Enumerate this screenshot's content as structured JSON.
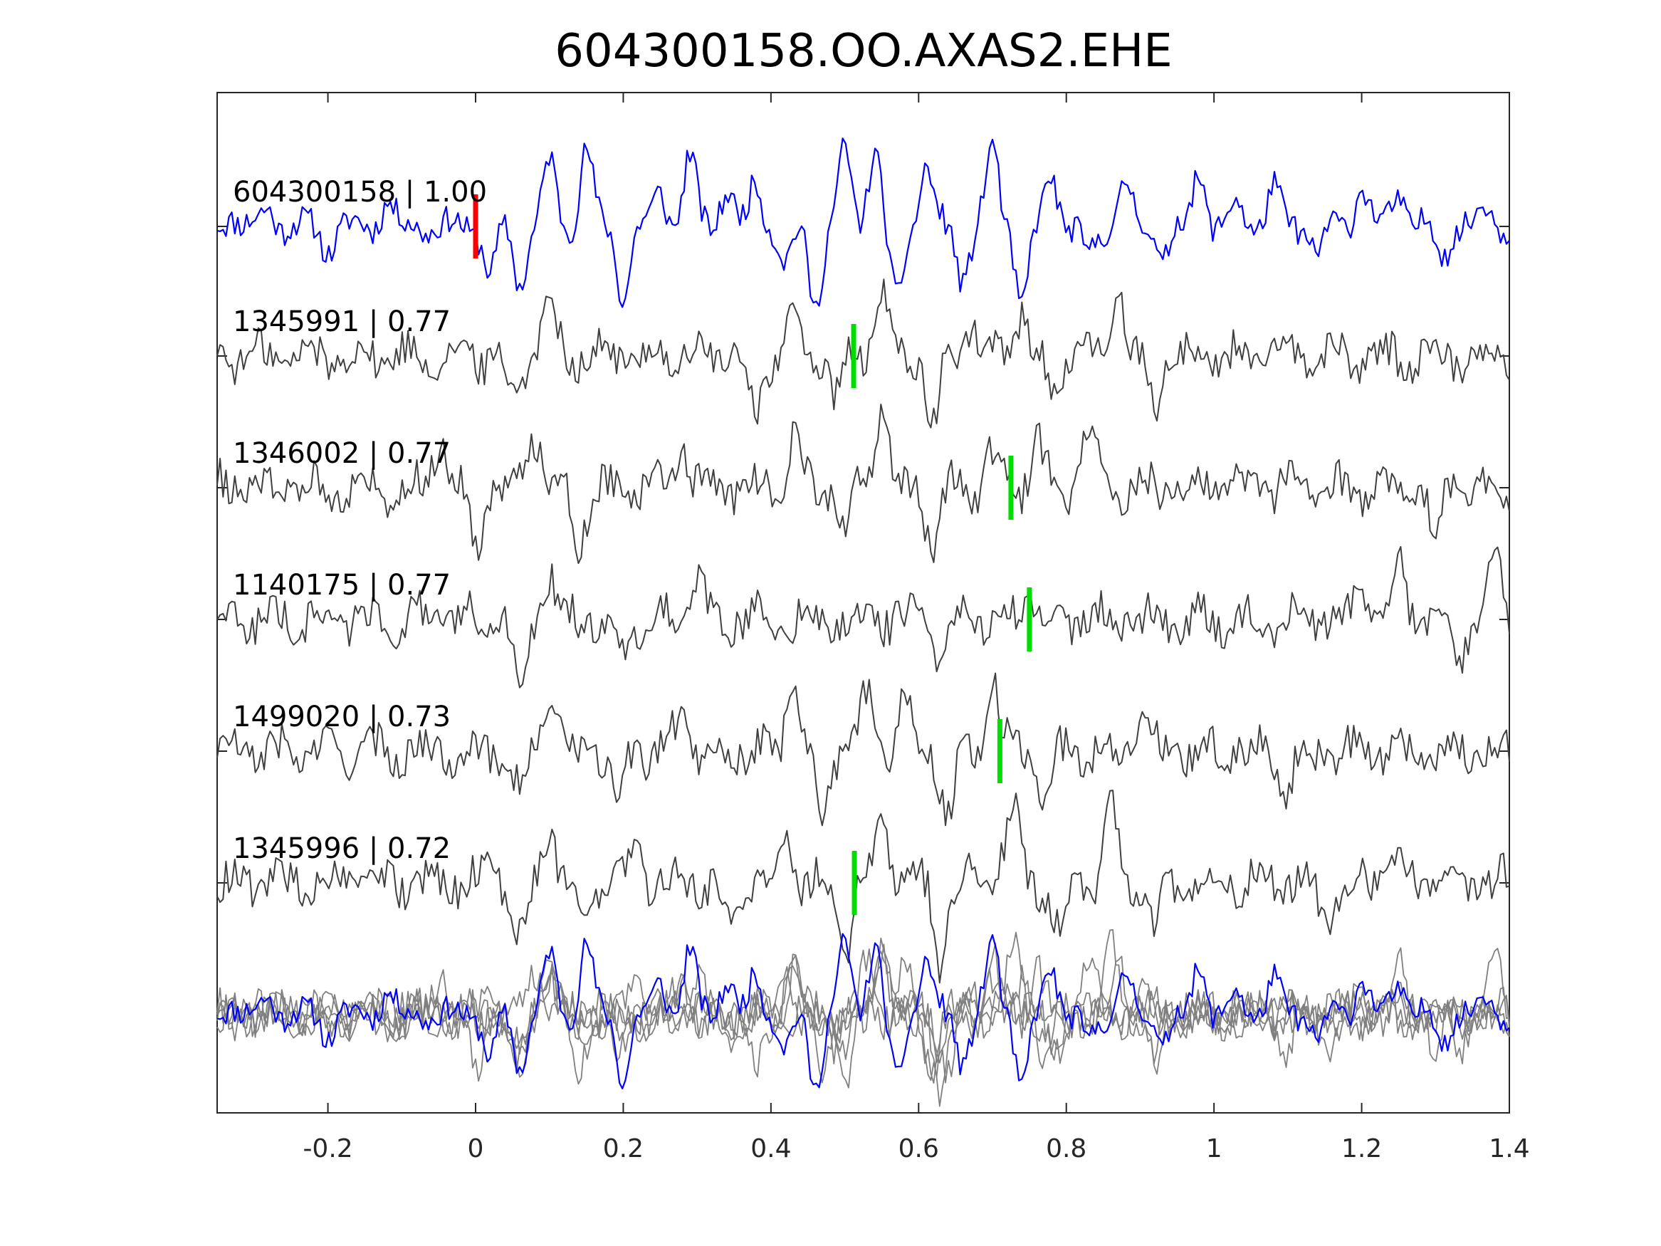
{
  "chart_data": {
    "type": "line",
    "title": "604300158.OO.AXAS2.EHE",
    "xlabel": "",
    "ylabel": "",
    "xlim": [
      -0.35,
      1.4
    ],
    "x_ticks": [
      -0.2,
      0,
      0.2,
      0.4,
      0.6,
      0.8,
      1,
      1.2,
      1.4
    ],
    "x_tick_labels": [
      "-0.2",
      "0",
      "0.2",
      "0.4",
      "0.6",
      "0.8",
      "1",
      "1.2",
      "1.4"
    ],
    "grid": false,
    "colors": {
      "template": "#0000ff",
      "match": "#404040",
      "overlay_gray": "#808080",
      "pick_template": "#ff0000",
      "pick_match": "#00dd00",
      "axes": "#262626"
    },
    "series": [
      {
        "name": "604300158",
        "cc": "1.00",
        "label": "604300158 | 1.00",
        "pick_x": 0.0,
        "pick_color": "red",
        "line_color": "blue",
        "peaks": [
          -0.33,
          -0.28,
          -0.2,
          -0.12,
          0.02,
          0.06,
          0.1,
          0.15,
          0.2,
          0.25,
          0.29,
          0.34,
          0.38,
          0.42,
          0.46,
          0.5,
          0.54,
          0.57,
          0.61,
          0.66,
          0.7,
          0.74,
          0.78,
          0.83,
          0.88,
          0.93,
          0.98,
          1.03,
          1.08,
          1.14,
          1.2,
          1.25,
          1.31,
          1.37
        ],
        "amps": [
          0.15,
          0.2,
          -0.25,
          0.3,
          -0.55,
          -0.65,
          0.75,
          0.9,
          -0.8,
          0.4,
          0.8,
          0.45,
          0.5,
          -0.45,
          -0.9,
          0.85,
          0.9,
          -0.9,
          0.7,
          -0.6,
          0.9,
          -0.9,
          0.6,
          -0.4,
          0.5,
          -0.35,
          0.6,
          0.25,
          0.45,
          -0.3,
          0.5,
          0.4,
          -0.3,
          0.25
        ]
      },
      {
        "name": "1345991",
        "cc": "0.77",
        "label": "1345991 | 0.77",
        "pick_x": 0.512,
        "pick_color": "green",
        "line_color": "gray",
        "peaks": [
          0.05,
          0.1,
          0.38,
          0.43,
          0.49,
          0.55,
          0.62,
          0.67,
          0.74,
          0.78,
          0.87,
          0.92
        ],
        "amps": [
          -0.45,
          0.75,
          -0.7,
          0.45,
          -0.5,
          0.75,
          -0.85,
          0.4,
          0.55,
          -0.45,
          0.75,
          -0.5
        ]
      },
      {
        "name": "1346002",
        "cc": "0.77",
        "label": "1346002 | 0.77",
        "pick_x": 0.725,
        "pick_color": "green",
        "line_color": "gray",
        "peaks": [
          -0.05,
          0.0,
          0.08,
          0.14,
          0.28,
          0.43,
          0.5,
          0.55,
          0.62,
          0.7,
          0.76,
          0.83,
          1.3
        ],
        "amps": [
          0.6,
          -0.65,
          0.7,
          -0.6,
          0.5,
          0.6,
          -0.55,
          0.95,
          -0.75,
          0.4,
          0.55,
          0.75,
          -0.55
        ]
      },
      {
        "name": "1140175",
        "cc": "0.77",
        "label": "1140175 | 0.77",
        "pick_x": 0.75,
        "pick_color": "green",
        "line_color": "gray",
        "peaks": [
          0.06,
          0.1,
          0.2,
          0.3,
          0.63,
          0.75,
          1.2,
          1.25,
          1.33,
          1.38
        ],
        "amps": [
          -0.95,
          0.5,
          -0.45,
          0.45,
          -0.6,
          0.45,
          0.5,
          0.7,
          -0.6,
          0.75
        ]
      },
      {
        "name": "1499020",
        "cc": "0.73",
        "label": "1499020 | 0.73",
        "pick_x": 0.71,
        "pick_color": "green",
        "line_color": "gray",
        "peaks": [
          0.06,
          0.1,
          0.19,
          0.28,
          0.43,
          0.47,
          0.53,
          0.58,
          0.64,
          0.7,
          0.77,
          0.9,
          1.1
        ],
        "amps": [
          -0.5,
          0.75,
          -0.6,
          0.5,
          0.95,
          -0.75,
          0.65,
          0.7,
          -0.75,
          0.85,
          -0.55,
          0.45,
          -0.4
        ]
      },
      {
        "name": "1345996",
        "cc": "0.72",
        "label": "1345996 | 0.72",
        "pick_x": 0.513,
        "pick_color": "green",
        "line_color": "gray",
        "peaks": [
          0.02,
          0.06,
          0.1,
          0.15,
          0.22,
          0.34,
          0.42,
          0.5,
          0.55,
          0.63,
          0.71,
          0.73,
          0.79,
          0.86,
          0.92,
          1.15,
          1.24
        ],
        "amps": [
          0.25,
          -0.65,
          0.7,
          -0.4,
          0.35,
          -0.55,
          0.55,
          -0.8,
          0.9,
          -0.95,
          0.3,
          0.9,
          -0.6,
          0.85,
          -0.5,
          -0.4,
          0.4
        ]
      }
    ],
    "overlay": {
      "description_visible": false,
      "series_count": 6
    }
  }
}
